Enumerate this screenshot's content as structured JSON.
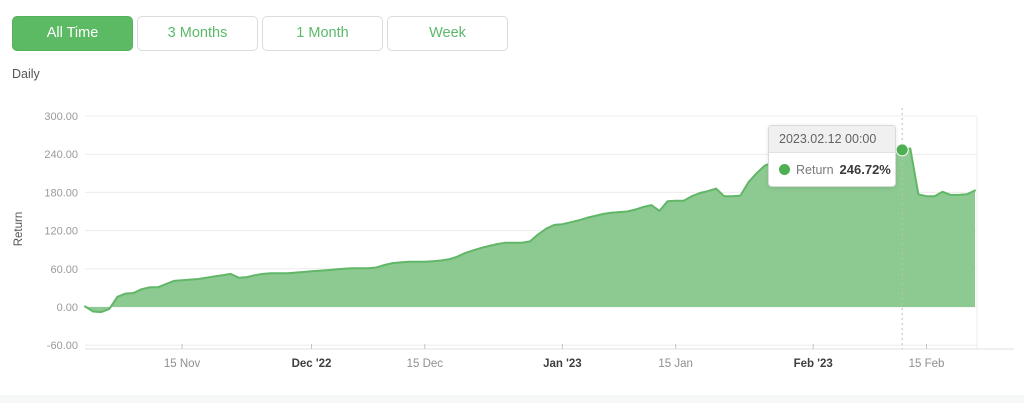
{
  "accent_color": "#5cb964",
  "toolbar": {
    "buttons": [
      {
        "label": "All Time",
        "active": true
      },
      {
        "label": "3 Months",
        "active": false
      },
      {
        "label": "1 Month",
        "active": false
      },
      {
        "label": "Week",
        "active": false
      }
    ]
  },
  "frequency_label": "Daily",
  "tooltip": {
    "timestamp": "2023.02.12 00:00",
    "series": "Return",
    "value": "246.72%"
  },
  "chart_data": {
    "type": "area",
    "title": "",
    "xlabel": "",
    "ylabel": "Return",
    "ylim": [
      -60,
      300
    ],
    "grid": true,
    "legend_position": "none",
    "y_ticks": [
      300,
      240,
      180,
      120,
      60,
      0,
      -60
    ],
    "y_tick_labels": [
      "300.00",
      "240.00",
      "180.00",
      "120.00",
      "60.00",
      "0.00",
      "-60.00"
    ],
    "start_date": "2022-11-03",
    "end_date": "2023-02-21",
    "frequency": "daily",
    "x_ticks": [
      {
        "label": "15 Nov",
        "day_index": 12,
        "bold": false
      },
      {
        "label": "Dec '22",
        "day_index": 28,
        "bold": true
      },
      {
        "label": "15 Dec",
        "day_index": 42,
        "bold": false
      },
      {
        "label": "Jan '23",
        "day_index": 59,
        "bold": true
      },
      {
        "label": "15 Jan",
        "day_index": 73,
        "bold": false
      },
      {
        "label": "Feb '23",
        "day_index": 90,
        "bold": true
      },
      {
        "label": "15 Feb",
        "day_index": 104,
        "bold": false
      }
    ],
    "series": [
      {
        "name": "Return",
        "unit": "%",
        "values": [
          1,
          -7,
          -8,
          -3,
          16,
          21,
          22,
          28,
          31,
          31,
          36,
          41,
          42,
          43,
          44,
          46,
          48,
          50,
          52,
          46,
          47,
          50,
          52,
          53,
          53,
          53,
          54,
          55,
          56,
          57,
          58,
          59,
          60,
          61,
          61,
          61,
          62,
          66,
          69,
          70,
          71,
          71,
          71,
          72,
          73,
          75,
          79,
          85,
          89,
          93,
          96,
          99,
          101,
          101,
          101,
          103,
          114,
          123,
          129,
          130,
          133,
          136,
          140,
          143,
          146,
          148,
          149,
          150,
          153,
          157,
          160,
          151,
          166,
          167,
          167,
          174,
          179,
          182,
          186,
          174,
          174,
          175,
          196,
          210,
          222,
          227,
          229,
          228,
          231,
          233,
          232,
          235,
          237,
          236,
          239,
          241,
          240,
          242,
          244,
          243,
          245,
          246.72,
          249,
          177,
          174,
          174,
          181,
          176,
          176,
          177,
          183
        ]
      }
    ],
    "highlight": {
      "day_index": 101,
      "date": "2023-02-12 00:00",
      "value": 246.72
    },
    "colors": {
      "fill": "#8dca91",
      "line": "#61b767",
      "dot": "#4db053",
      "grid": "#ececec",
      "axis": "#e0e0e0",
      "tick": "#c6c6c6",
      "cursor": "#bdbdbd"
    }
  }
}
